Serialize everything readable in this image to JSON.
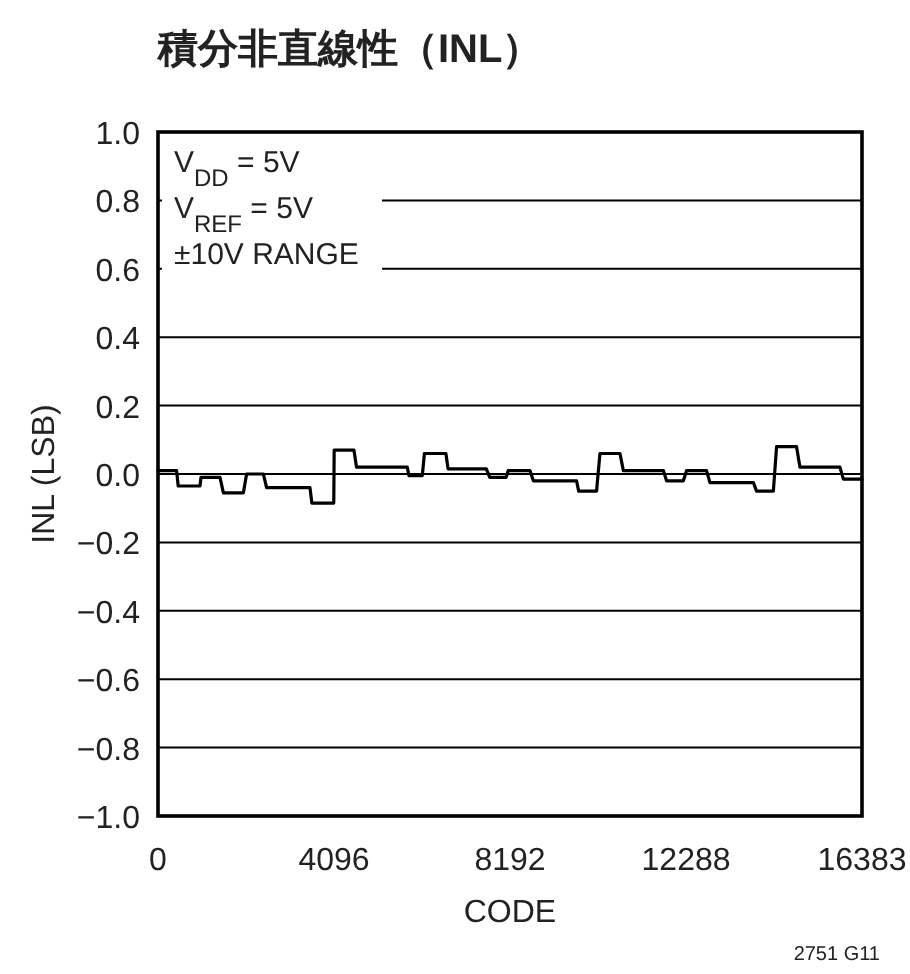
{
  "chart_data": {
    "type": "line",
    "title": "積分非直線性（INL）",
    "xlabel": "CODE",
    "ylabel": "INL (LSB)",
    "x": [
      0,
      433,
      470,
      977,
      1000,
      1443,
      1522,
      1987,
      2062,
      2453,
      2527,
      3537,
      3580,
      4090,
      4100,
      4560,
      4620,
      5800,
      5840,
      6150,
      6200,
      6700,
      6750,
      7640,
      7720,
      8100,
      8150,
      8656,
      8735,
      9741,
      9790,
      10206,
      10285,
      10750,
      10830,
      11761,
      11835,
      12226,
      12301,
      12766,
      12845,
      13855,
      13929,
      14320,
      14395,
      14860,
      14939,
      15870,
      15949,
      16383
    ],
    "series": [
      {
        "color": "#000000",
        "values": [
          0.01,
          0.01,
          -0.035,
          -0.035,
          -0.01,
          -0.01,
          -0.055,
          -0.055,
          0.0,
          0.0,
          -0.04,
          -0.04,
          -0.085,
          -0.085,
          0.07,
          0.07,
          0.02,
          0.02,
          -0.005,
          -0.005,
          0.06,
          0.06,
          0.015,
          0.015,
          -0.01,
          -0.01,
          0.01,
          0.01,
          -0.02,
          -0.02,
          -0.05,
          -0.05,
          0.06,
          0.06,
          0.01,
          0.01,
          -0.02,
          -0.02,
          0.01,
          0.01,
          -0.025,
          -0.025,
          -0.05,
          -0.05,
          0.08,
          0.08,
          0.02,
          0.02,
          -0.015,
          -0.015
        ]
      }
    ],
    "xlim": [
      0,
      16383
    ],
    "xticks": [
      0,
      4096,
      8192,
      12288,
      16383
    ],
    "ylim": [
      -1.0,
      1.0
    ],
    "yticks": [
      {
        "value": 1.0,
        "label": "1.0"
      },
      {
        "value": 0.8,
        "label": "0.8"
      },
      {
        "value": 0.6,
        "label": "0.6"
      },
      {
        "value": 0.4,
        "label": "0.4"
      },
      {
        "value": 0.2,
        "label": "0.2"
      },
      {
        "value": 0.0,
        "label": "0.0"
      },
      {
        "value": -0.2,
        "label": "−0.2"
      },
      {
        "value": -0.4,
        "label": "−0.4"
      },
      {
        "value": -0.6,
        "label": "−0.6"
      },
      {
        "value": -0.8,
        "label": "−0.8"
      },
      {
        "value": -1.0,
        "label": "−1.0"
      }
    ],
    "grid": "y",
    "marker": "none",
    "line_style": "solid",
    "annotations": [
      "V$_{DD}$ = 5V",
      "V$_{REF}$ = 5V",
      "±10V RANGE",
      "2751 G11"
    ]
  }
}
